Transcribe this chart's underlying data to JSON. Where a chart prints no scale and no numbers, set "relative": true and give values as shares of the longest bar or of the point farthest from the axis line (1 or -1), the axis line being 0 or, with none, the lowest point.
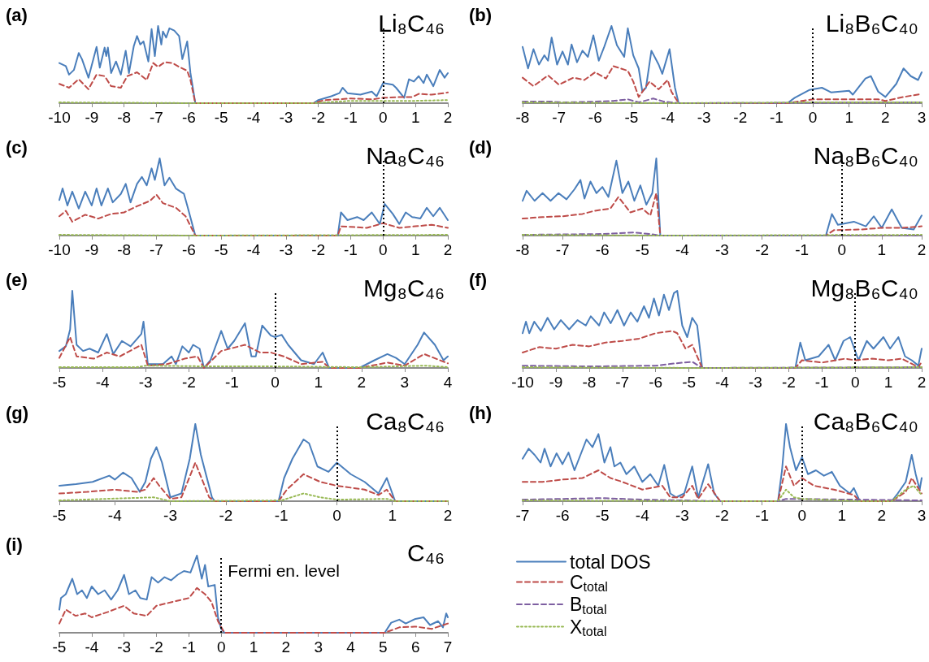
{
  "chart_data": [
    {
      "type": "line",
      "title": "(a)",
      "subtitle": "Li₈C₄₆",
      "relative": true,
      "xlim": [
        -10,
        2
      ],
      "xticks": [
        -10,
        -9,
        -8,
        -7,
        -6,
        -5,
        -4,
        -3,
        -2,
        -1,
        0,
        1,
        2
      ],
      "ref_lines": [
        {
          "axis": "x",
          "value": 0,
          "color": "#000000",
          "line_style": "dotted"
        }
      ],
      "series": [
        {
          "color": "#4a7ebb",
          "line_style": "solid",
          "x": [
            -10,
            -9.8,
            -9.7,
            -9.55,
            -9.4,
            -9.3,
            -9.1,
            -8.85,
            -8.75,
            -8.6,
            -8.55,
            -8.5,
            -8.4,
            -8.25,
            -8.1,
            -7.95,
            -7.85,
            -7.7,
            -7.6,
            -7.5,
            -7.4,
            -7.25,
            -7.15,
            -7.05,
            -6.95,
            -6.85,
            -6.8,
            -6.7,
            -6.6,
            -6.45,
            -6.3,
            -6.2,
            -6.05,
            -5.95,
            -5.8,
            -2.15,
            -2,
            -1.6,
            -1.35,
            -1.25,
            -1.1,
            -0.7,
            -0.35,
            -0.2,
            0,
            0.3,
            0.4,
            0.65,
            0.8,
            0.95,
            1.1,
            1.25,
            1.35,
            1.55,
            1.75,
            1.9,
            2
          ],
          "values": [
            0.52,
            0.48,
            0.37,
            0.43,
            0.65,
            0.57,
            0.33,
            0.73,
            0.46,
            0.72,
            0.61,
            0.72,
            0.39,
            0.54,
            0.37,
            0.68,
            0.39,
            0.74,
            0.87,
            0.76,
            0.8,
            0.54,
            0.96,
            0.61,
            1,
            0.76,
            0.93,
            0.85,
            0.97,
            0.94,
            0.87,
            0.57,
            0.8,
            0.39,
            0,
            0,
            0.04,
            0.09,
            0.13,
            0.2,
            0.13,
            0.11,
            0.15,
            0.09,
            0.26,
            0.24,
            0.2,
            0.07,
            0.31,
            0.28,
            0.35,
            0.26,
            0.37,
            0.22,
            0.43,
            0.33,
            0.39
          ]
        },
        {
          "color": "#be4b48",
          "line_style": "dashed",
          "x": [
            -10,
            -9.7,
            -9.4,
            -9.1,
            -8.85,
            -8.6,
            -8.4,
            -8.1,
            -7.9,
            -7.6,
            -7.3,
            -7.1,
            -6.95,
            -6.75,
            -6.5,
            -6.3,
            -6.05,
            -5.95,
            -5.8,
            -2.15,
            -1.8,
            -1,
            -0.3,
            0,
            0.6,
            0.9,
            1.1,
            1.5,
            1.9,
            2
          ],
          "values": [
            0.25,
            0.2,
            0.31,
            0.18,
            0.37,
            0.35,
            0.22,
            0.2,
            0.35,
            0.4,
            0.3,
            0.52,
            0.47,
            0.53,
            0.52,
            0.47,
            0.42,
            0.3,
            0,
            0,
            0.04,
            0.06,
            0.05,
            0.07,
            0.08,
            0.08,
            0.12,
            0.11,
            0.13,
            0.14
          ]
        },
        {
          "color": "#98b954",
          "line_style": "dotted",
          "x": [
            -10,
            -5.8,
            -2.15,
            -1,
            0,
            1,
            2
          ],
          "values": [
            0.01,
            0,
            0,
            0.03,
            0.03,
            0.03,
            0.04
          ]
        }
      ]
    },
    {
      "type": "line",
      "title": "(b)",
      "subtitle": "Li₈B₆C₄₀",
      "relative": true,
      "xlim": [
        -8,
        3
      ],
      "xticks": [
        -8,
        -7,
        -6,
        -5,
        -4,
        -3,
        -2,
        -1,
        0,
        1,
        2,
        3
      ],
      "ref_lines": [
        {
          "axis": "x",
          "value": 0,
          "color": "#000000",
          "line_style": "dotted"
        }
      ],
      "series": [
        {
          "color": "#4a7ebb",
          "line_style": "solid",
          "x": [
            -8,
            -7.85,
            -7.7,
            -7.55,
            -7.4,
            -7.3,
            -7.2,
            -7.05,
            -6.9,
            -6.75,
            -6.65,
            -6.5,
            -6.35,
            -6.2,
            -6.05,
            -5.9,
            -5.75,
            -5.55,
            -5.4,
            -5.2,
            -5.1,
            -4.95,
            -4.8,
            -4.7,
            -4.6,
            -4.45,
            -4.25,
            -4.15,
            -3.95,
            -3.8,
            -3.7,
            -0.7,
            -0.5,
            -0.1,
            0.25,
            0.5,
            1,
            1.1,
            1.45,
            1.6,
            1.8,
            2,
            2.3,
            2.5,
            2.7,
            2.9,
            3
          ],
          "values": [
            0.73,
            0.45,
            0.7,
            0.5,
            0.62,
            0.55,
            0.85,
            0.5,
            0.67,
            0.5,
            0.76,
            0.53,
            0.68,
            0.6,
            0.88,
            0.55,
            0.73,
            1,
            0.75,
            0.6,
            0.97,
            0.62,
            0.45,
            0.15,
            0.2,
            0.68,
            0.5,
            0.38,
            0.7,
            0.2,
            0,
            0,
            0.07,
            0.17,
            0.2,
            0.14,
            0.16,
            0.11,
            0.32,
            0.35,
            0.15,
            0.08,
            0.25,
            0.45,
            0.35,
            0.3,
            0.4
          ]
        },
        {
          "color": "#be4b48",
          "line_style": "dashed",
          "x": [
            -8,
            -7.7,
            -7.3,
            -7,
            -6.6,
            -6.3,
            -6,
            -5.7,
            -5.5,
            -5.1,
            -4.95,
            -4.8,
            -4.5,
            -4.25,
            -4,
            -3.9,
            -3.7,
            -0.7,
            -0.3,
            0,
            1,
            1.8,
            2,
            2.5,
            3
          ],
          "values": [
            0.33,
            0.22,
            0.36,
            0.24,
            0.33,
            0.3,
            0.4,
            0.32,
            0.48,
            0.42,
            0.28,
            0.08,
            0.28,
            0.18,
            0.3,
            0.15,
            0,
            0,
            0.03,
            0.05,
            0.05,
            0.05,
            0.03,
            0.08,
            0.12
          ]
        },
        {
          "color": "#7e5fa1",
          "line_style": "dashed",
          "x": [
            -8,
            -7.2,
            -6.9,
            -6,
            -5.5,
            -5.1,
            -4.8,
            -4.4,
            -4.1,
            -3.7,
            3
          ],
          "values": [
            0.02,
            0.02,
            0.01,
            0.02,
            0.03,
            0.05,
            0.01,
            0.06,
            0.02,
            0,
            0.01
          ]
        },
        {
          "color": "#98b954",
          "line_style": "dotted",
          "x": [
            -8,
            -3.7,
            0,
            3
          ],
          "values": [
            0.01,
            0,
            0.01,
            0.01
          ]
        }
      ]
    },
    {
      "type": "line",
      "title": "(c)",
      "subtitle": "Na₈C₄₆",
      "relative": true,
      "xlim": [
        -10,
        2
      ],
      "xticks": [
        -10,
        -9,
        -8,
        -7,
        -6,
        -5,
        -4,
        -3,
        -2,
        -1,
        0,
        1,
        2
      ],
      "ref_lines": [
        {
          "axis": "x",
          "value": 0,
          "color": "#000000",
          "line_style": "dotted"
        }
      ],
      "series": [
        {
          "color": "#4a7ebb",
          "line_style": "solid",
          "x": [
            -10,
            -9.9,
            -9.75,
            -9.6,
            -9.4,
            -9.2,
            -9,
            -8.85,
            -8.7,
            -8.5,
            -8.35,
            -8.1,
            -7.95,
            -7.8,
            -7.6,
            -7.45,
            -7.3,
            -7.15,
            -7.05,
            -6.9,
            -6.75,
            -6.6,
            -6.4,
            -6.15,
            -6.05,
            -5.8,
            -1.4,
            -1.3,
            -1.1,
            -0.8,
            -0.6,
            -0.35,
            -0.1,
            0.05,
            0.3,
            0.5,
            0.7,
            0.9,
            1.15,
            1.35,
            1.55,
            1.75,
            2
          ],
          "values": [
            0.46,
            0.61,
            0.39,
            0.57,
            0.35,
            0.57,
            0.39,
            0.61,
            0.39,
            0.61,
            0.43,
            0.54,
            0.67,
            0.43,
            0.67,
            0.76,
            0.65,
            0.87,
            0.72,
            1,
            0.65,
            0.75,
            0.61,
            0.54,
            0.39,
            0,
            0,
            0.3,
            0.2,
            0.24,
            0.2,
            0.3,
            0.15,
            0.41,
            0.28,
            0.15,
            0.3,
            0.24,
            0.22,
            0.36,
            0.25,
            0.36,
            0.2
          ]
        },
        {
          "color": "#be4b48",
          "line_style": "dashed",
          "x": [
            -10,
            -9.8,
            -9.6,
            -9.2,
            -8.8,
            -8.4,
            -8,
            -7.6,
            -7.2,
            -7,
            -6.8,
            -6.4,
            -6.1,
            -5.8,
            -1.4,
            -1.3,
            -0.5,
            0,
            0.5,
            1,
            1.5,
            2
          ],
          "values": [
            0.25,
            0.32,
            0.18,
            0.27,
            0.22,
            0.28,
            0.3,
            0.38,
            0.45,
            0.53,
            0.42,
            0.36,
            0.25,
            0,
            0,
            0.12,
            0.1,
            0.16,
            0.1,
            0.12,
            0.14,
            0.1
          ]
        },
        {
          "color": "#98b954",
          "line_style": "dotted",
          "x": [
            -10,
            -5.8,
            2
          ],
          "values": [
            0.01,
            0,
            0.01
          ]
        }
      ]
    },
    {
      "type": "line",
      "title": "(d)",
      "subtitle": "Na₈B₆C₄₀",
      "relative": true,
      "xlim": [
        -8,
        2
      ],
      "xticks": [
        -8,
        -7,
        -6,
        -5,
        -4,
        -3,
        -2,
        -1,
        0,
        1,
        2
      ],
      "ref_lines": [
        {
          "axis": "x",
          "value": 0,
          "color": "#000000",
          "line_style": "dotted"
        }
      ],
      "series": [
        {
          "color": "#4a7ebb",
          "line_style": "solid",
          "x": [
            -8,
            -7.9,
            -7.7,
            -7.5,
            -7.3,
            -7.1,
            -6.9,
            -6.7,
            -6.55,
            -6.45,
            -6.3,
            -6.15,
            -6,
            -5.85,
            -5.65,
            -5.5,
            -5.35,
            -5.2,
            -5.05,
            -4.9,
            -4.75,
            -4.65,
            -4.55,
            -0.4,
            -0.25,
            -0.1,
            0.3,
            0.6,
            0.8,
            1,
            1.25,
            1.5,
            1.8,
            2
          ],
          "values": [
            0.45,
            0.58,
            0.45,
            0.55,
            0.45,
            0.55,
            0.47,
            0.6,
            0.72,
            0.48,
            0.7,
            0.55,
            0.63,
            0.5,
            0.97,
            0.55,
            0.7,
            0.45,
            0.65,
            0.4,
            0.55,
            1,
            0,
            0,
            0.28,
            0.14,
            0.18,
            0.12,
            0.25,
            0.1,
            0.34,
            0.1,
            0.08,
            0.26
          ]
        },
        {
          "color": "#be4b48",
          "line_style": "dashed",
          "x": [
            -8,
            -7.5,
            -7,
            -6.5,
            -6.2,
            -5.8,
            -5.6,
            -5.3,
            -5,
            -4.8,
            -4.65,
            -4.55,
            -0.4,
            -0.2,
            0.5,
            1,
            1.5,
            2
          ],
          "values": [
            0.22,
            0.24,
            0.25,
            0.28,
            0.32,
            0.35,
            0.5,
            0.3,
            0.35,
            0.26,
            0.55,
            0,
            0,
            0.07,
            0.08,
            0.1,
            0.1,
            0.12
          ]
        },
        {
          "color": "#7e5fa1",
          "line_style": "dashed",
          "x": [
            -8,
            -6,
            -5.2,
            -4.8,
            -4.55,
            2
          ],
          "values": [
            0.01,
            0.02,
            0.04,
            0.02,
            0,
            0
          ]
        },
        {
          "color": "#98b954",
          "line_style": "dotted",
          "x": [
            -8,
            -4.55,
            2
          ],
          "values": [
            0.01,
            0,
            0.01
          ]
        }
      ]
    },
    {
      "type": "line",
      "title": "(e)",
      "subtitle": "Mg₈C₄₆",
      "relative": true,
      "xlim": [
        -5,
        4
      ],
      "xticks": [
        -5,
        -4,
        -3,
        -2,
        -1,
        0,
        1,
        2,
        3,
        4
      ],
      "ref_lines": [
        {
          "axis": "x",
          "value": 0,
          "color": "#000000",
          "line_style": "dotted"
        }
      ],
      "series": [
        {
          "color": "#4a7ebb",
          "line_style": "solid",
          "x": [
            -5,
            -4.85,
            -4.75,
            -4.7,
            -4.6,
            -4.45,
            -4.3,
            -4.1,
            -3.9,
            -3.75,
            -3.55,
            -3.35,
            -3.1,
            -3.05,
            -2.95,
            -2.6,
            -2.4,
            -2.3,
            -2.15,
            -2,
            -1.9,
            -1.75,
            -1.65,
            -1.5,
            -1.25,
            -1.1,
            -0.95,
            -0.7,
            -0.55,
            -0.45,
            -0.3,
            -0.1,
            0,
            0.15,
            0.3,
            0.6,
            0.9,
            1.1,
            1.25,
            1.95,
            2.3,
            2.6,
            2.8,
            3,
            3.3,
            3.45,
            3.7,
            3.9,
            4
          ],
          "values": [
            0.22,
            0.28,
            0.5,
            1,
            0.3,
            0.22,
            0.25,
            0.2,
            0.44,
            0.18,
            0.35,
            0.28,
            0.44,
            0.6,
            0.05,
            0.05,
            0.15,
            0.05,
            0.28,
            0.2,
            0.3,
            0.25,
            0,
            0.1,
            0.48,
            0.25,
            0.35,
            0.58,
            0.15,
            0.15,
            0.55,
            0.42,
            0.4,
            0.43,
            0.3,
            0.1,
            0.05,
            0.2,
            0,
            0,
            0.1,
            0.18,
            0.13,
            0.05,
            0.3,
            0.46,
            0.3,
            0.1,
            0.15
          ]
        },
        {
          "color": "#be4b48",
          "line_style": "dashed",
          "x": [
            -5,
            -4.75,
            -4.6,
            -4.2,
            -3.9,
            -3.6,
            -3.1,
            -2.95,
            -2.5,
            -2.1,
            -1.8,
            -1.65,
            -1.25,
            -0.7,
            -0.35,
            -0.1,
            0.2,
            0.6,
            1.1,
            1.25,
            1.95,
            2.6,
            3,
            3.45,
            4
          ],
          "values": [
            0.13,
            0.4,
            0.15,
            0.12,
            0.2,
            0.15,
            0.3,
            0.03,
            0.05,
            0.12,
            0.15,
            0,
            0.22,
            0.3,
            0.2,
            0.2,
            0.15,
            0.05,
            0.08,
            0,
            0,
            0.07,
            0.03,
            0.18,
            0.06
          ]
        },
        {
          "color": "#98b954",
          "line_style": "dotted",
          "x": [
            -5,
            -3.2,
            -3,
            -1.5,
            0,
            2,
            3.5,
            4
          ],
          "values": [
            0.01,
            0.01,
            0.03,
            0.02,
            0.02,
            0.01,
            0.03,
            0.01
          ]
        }
      ]
    },
    {
      "type": "line",
      "title": "(f)",
      "subtitle": "Mg₈B₆C₄₀",
      "relative": true,
      "xlim": [
        -10,
        2
      ],
      "xticks": [
        -10,
        -9,
        -8,
        -7,
        -6,
        -5,
        -4,
        -3,
        -2,
        -1,
        0,
        1,
        2
      ],
      "ref_lines": [
        {
          "axis": "x",
          "value": 0,
          "color": "#000000",
          "line_style": "dotted"
        }
      ],
      "series": [
        {
          "color": "#4a7ebb",
          "line_style": "solid",
          "x": [
            -10,
            -9.9,
            -9.8,
            -9.65,
            -9.45,
            -9.25,
            -9.05,
            -8.85,
            -8.6,
            -8.35,
            -8.1,
            -7.95,
            -7.7,
            -7.55,
            -7.35,
            -7.15,
            -6.95,
            -6.75,
            -6.55,
            -6.35,
            -6.2,
            -6.05,
            -5.9,
            -5.75,
            -5.6,
            -5.45,
            -5.35,
            -5.2,
            -5.05,
            -4.9,
            -4.75,
            -4.6,
            -1.8,
            -1.65,
            -1.5,
            -1.1,
            -0.8,
            -0.6,
            -0.35,
            -0.15,
            0.1,
            0.35,
            0.55,
            0.85,
            1.05,
            1.3,
            1.5,
            1.7,
            1.9,
            2
          ],
          "values": [
            0.45,
            0.6,
            0.45,
            0.6,
            0.48,
            0.65,
            0.5,
            0.62,
            0.5,
            0.62,
            0.55,
            0.67,
            0.55,
            0.72,
            0.58,
            0.75,
            0.55,
            0.72,
            0.6,
            0.8,
            0.65,
            0.9,
            0.68,
            0.95,
            0.75,
            0.97,
            1,
            0.55,
            0.4,
            0.65,
            0.55,
            0,
            0,
            0.33,
            0.1,
            0.15,
            0.3,
            0.1,
            0.35,
            0.4,
            0.1,
            0.35,
            0.25,
            0.4,
            0.25,
            0.4,
            0.15,
            0.1,
            0.03,
            0.25
          ]
        },
        {
          "color": "#be4b48",
          "line_style": "dashed",
          "x": [
            -10,
            -9.5,
            -9,
            -8.5,
            -8,
            -7.5,
            -7,
            -6.5,
            -6,
            -5.5,
            -5.35,
            -5.1,
            -4.9,
            -4.6,
            -1.8,
            -1.6,
            -1,
            -0.3,
            0,
            0.5,
            1,
            1.4,
            1.9,
            2
          ],
          "values": [
            0.2,
            0.27,
            0.25,
            0.3,
            0.28,
            0.33,
            0.35,
            0.38,
            0.45,
            0.48,
            0.45,
            0.25,
            0.3,
            0,
            0,
            0.1,
            0.07,
            0.12,
            0.1,
            0.12,
            0.1,
            0.12,
            0.01,
            0.08
          ]
        },
        {
          "color": "#7e5fa1",
          "line_style": "dashed",
          "x": [
            -10,
            -8,
            -6,
            -5.4,
            -4.9,
            -4.6,
            2
          ],
          "values": [
            0.03,
            0.02,
            0.03,
            0.06,
            0.08,
            0,
            0.01
          ]
        },
        {
          "color": "#98b954",
          "line_style": "dotted",
          "x": [
            -10,
            -4.6,
            2
          ],
          "values": [
            0.01,
            0,
            0.01
          ]
        }
      ]
    },
    {
      "type": "line",
      "title": "(g)",
      "subtitle": "Ca₈C₄₆",
      "relative": true,
      "xlim": [
        -5,
        2
      ],
      "xticks": [
        -5,
        -4,
        -3,
        -2,
        -1,
        0,
        1,
        2
      ],
      "ref_lines": [
        {
          "axis": "x",
          "value": 0,
          "color": "#000000",
          "line_style": "dotted"
        }
      ],
      "series": [
        {
          "color": "#4a7ebb",
          "line_style": "solid",
          "x": [
            -5,
            -4.7,
            -4.4,
            -4.1,
            -4,
            -3.85,
            -3.7,
            -3.55,
            -3.45,
            -3.35,
            -3.25,
            -3.15,
            -3,
            -2.8,
            -2.65,
            -2.55,
            -2.45,
            -2.25,
            -2.2,
            -1.05,
            -0.95,
            -0.8,
            -0.6,
            -0.5,
            -0.35,
            -0.15,
            0,
            0.25,
            0.5,
            0.75,
            0.9,
            1.05,
            2
          ],
          "values": [
            0.2,
            0.22,
            0.25,
            0.33,
            0.28,
            0.37,
            0.3,
            0.12,
            0.25,
            0.55,
            0.7,
            0.5,
            0.05,
            0.1,
            0.55,
            1,
            0.6,
            0.05,
            0,
            0,
            0.3,
            0.55,
            0.8,
            0.75,
            0.45,
            0.38,
            0.5,
            0.35,
            0.25,
            0.1,
            0.3,
            0,
            0
          ]
        },
        {
          "color": "#be4b48",
          "line_style": "dashed",
          "x": [
            -5,
            -4.5,
            -4,
            -3.6,
            -3.45,
            -3.3,
            -3.2,
            -3,
            -2.8,
            -2.55,
            -2.3,
            -2.2,
            -1.05,
            -0.9,
            -0.6,
            -0.3,
            0,
            0.5,
            0.75,
            0.9,
            1.05,
            2
          ],
          "values": [
            0.1,
            0.12,
            0.15,
            0.12,
            0.15,
            0.3,
            0.2,
            0.03,
            0.05,
            0.5,
            0.05,
            0,
            0,
            0.15,
            0.35,
            0.25,
            0.2,
            0.15,
            0.08,
            0.15,
            0,
            0
          ]
        },
        {
          "color": "#98b954",
          "line_style": "dotted",
          "x": [
            -5,
            -3.3,
            -3,
            -1,
            -0.6,
            -0.3,
            0,
            0.9,
            1.05,
            2
          ],
          "values": [
            0.01,
            0.05,
            0,
            0.01,
            0.1,
            0.05,
            0.02,
            0.03,
            0,
            0
          ]
        }
      ]
    },
    {
      "type": "line",
      "title": "(h)",
      "subtitle": "Ca₈B₆C₄₀",
      "relative": true,
      "xlim": [
        -7,
        3
      ],
      "xticks": [
        -7,
        -6,
        -5,
        -4,
        -3,
        -2,
        -1,
        0,
        1,
        2,
        3
      ],
      "legend": "bottom",
      "ref_lines": [
        {
          "axis": "x",
          "value": 0,
          "color": "#000000",
          "line_style": "dotted"
        }
      ],
      "series": [
        {
          "name": "total DOS",
          "color": "#4a7ebb",
          "line_style": "solid",
          "x": [
            -7,
            -6.85,
            -6.7,
            -6.55,
            -6.45,
            -6.3,
            -6.15,
            -6,
            -5.85,
            -5.7,
            -5.55,
            -5.4,
            -5.25,
            -5.1,
            -4.95,
            -4.8,
            -4.7,
            -4.55,
            -4.4,
            -4.2,
            -4,
            -3.8,
            -3.6,
            -3.45,
            -3.3,
            -3.15,
            -2.95,
            -2.75,
            -2.6,
            -2.35,
            -2.2,
            -2.05,
            -0.6,
            -0.5,
            -0.4,
            -0.3,
            -0.15,
            0,
            0.15,
            0.35,
            0.55,
            0.75,
            0.95,
            1.2,
            1.3,
            1.45,
            2.25,
            2.4,
            2.6,
            2.75,
            2.85,
            2.95,
            3
          ],
          "values": [
            0.55,
            0.68,
            0.6,
            0.5,
            0.68,
            0.45,
            0.62,
            0.48,
            0.63,
            0.4,
            0.6,
            0.8,
            0.7,
            0.87,
            0.5,
            0.7,
            0.45,
            0.5,
            0.35,
            0.45,
            0.25,
            0.35,
            0.2,
            0.47,
            0.1,
            0.05,
            0.1,
            0.45,
            0.05,
            0.48,
            0.1,
            0,
            0,
            0.4,
            1,
            0.7,
            0.4,
            0.57,
            0.35,
            0.4,
            0.33,
            0.38,
            0.2,
            0.1,
            0.17,
            0,
            0,
            0.1,
            0.25,
            0.6,
            0.35,
            0.15,
            0.3
          ]
        },
        {
          "name": "C$_{total}$",
          "color": "#be4b48",
          "line_style": "dashed",
          "x": [
            -7,
            -6.5,
            -6,
            -5.5,
            -5.1,
            -4.8,
            -4.5,
            -4,
            -3.5,
            -3.3,
            -3,
            -2.75,
            -2.6,
            -2.35,
            -2.05,
            -0.6,
            -0.4,
            -0.2,
            0,
            0.3,
            0.8,
            1.3,
            1.45,
            2.25,
            2.6,
            2.75,
            3
          ],
          "values": [
            0.25,
            0.25,
            0.28,
            0.3,
            0.4,
            0.3,
            0.25,
            0.15,
            0.2,
            0.05,
            0.05,
            0.2,
            0.03,
            0.22,
            0,
            0,
            0.45,
            0.2,
            0.3,
            0.2,
            0.15,
            0.08,
            0,
            0,
            0.12,
            0.3,
            0.1
          ]
        },
        {
          "name": "B$_{total}$",
          "color": "#7e5fa1",
          "line_style": "dashed",
          "x": [
            -7,
            -5,
            -4,
            -3,
            -2.05,
            -0.6,
            -0.4,
            3
          ],
          "values": [
            0.02,
            0.04,
            0.02,
            0.01,
            0,
            0,
            0.03,
            0.01
          ]
        },
        {
          "name": "X$_{total}$",
          "color": "#98b954",
          "line_style": "dotted",
          "x": [
            -7,
            -2.05,
            -0.6,
            -0.4,
            -0.2,
            0,
            1.45,
            2.25,
            2.6,
            2.8,
            3
          ],
          "values": [
            0.01,
            0,
            0,
            0.15,
            0.05,
            0.03,
            0,
            0,
            0.15,
            0.2,
            0.08
          ]
        }
      ]
    },
    {
      "type": "line",
      "title": "(i)",
      "subtitle": "C₄₆",
      "relative": true,
      "xlim": [
        -5,
        7
      ],
      "xticks": [
        -5,
        -4,
        -3,
        -2,
        -1,
        0,
        1,
        2,
        3,
        4,
        5,
        6,
        7
      ],
      "ref_lines": [
        {
          "axis": "x",
          "value": 0,
          "color": "#000000",
          "line_style": "dotted",
          "label": "Fermi en. level"
        }
      ],
      "series": [
        {
          "color": "#4a7ebb",
          "line_style": "solid",
          "x": [
            -5,
            -4.95,
            -4.8,
            -4.6,
            -4.45,
            -4.3,
            -4.15,
            -4,
            -3.8,
            -3.6,
            -3.4,
            -3.2,
            -3,
            -2.85,
            -2.65,
            -2.5,
            -2.3,
            -2.15,
            -1.95,
            -1.75,
            -1.55,
            -1.35,
            -1.15,
            -0.95,
            -0.75,
            -0.6,
            -0.5,
            -0.4,
            -0.2,
            -0.1,
            0,
            0.1,
            5.05,
            5.25,
            5.5,
            5.7,
            6,
            6.25,
            6.45,
            6.7,
            6.85,
            6.95,
            7
          ],
          "values": [
            0.3,
            0.45,
            0.5,
            0.7,
            0.5,
            0.55,
            0.45,
            0.6,
            0.5,
            0.55,
            0.43,
            0.55,
            0.75,
            0.5,
            0.55,
            0.45,
            0.43,
            0.72,
            0.65,
            0.72,
            0.68,
            0.75,
            0.8,
            0.78,
            1,
            0.7,
            0.88,
            0.6,
            0.62,
            0.2,
            0.05,
            0,
            0,
            0.13,
            0.17,
            0.12,
            0.18,
            0.2,
            0.1,
            0.15,
            0.07,
            0.25,
            0.2
          ]
        },
        {
          "color": "#be4b48",
          "line_style": "dashed",
          "x": [
            -5,
            -4.8,
            -4.5,
            -4.2,
            -4,
            -3.5,
            -3,
            -2.7,
            -2.3,
            -2,
            -1.5,
            -1,
            -0.75,
            -0.5,
            -0.3,
            -0.1,
            0.1,
            5.05,
            5.5,
            6,
            6.5,
            7
          ],
          "values": [
            0.12,
            0.3,
            0.22,
            0.25,
            0.2,
            0.27,
            0.35,
            0.25,
            0.22,
            0.35,
            0.4,
            0.45,
            0.58,
            0.5,
            0.4,
            0.15,
            0,
            0,
            0.07,
            0.08,
            0.05,
            0.12
          ]
        }
      ]
    }
  ]
}
